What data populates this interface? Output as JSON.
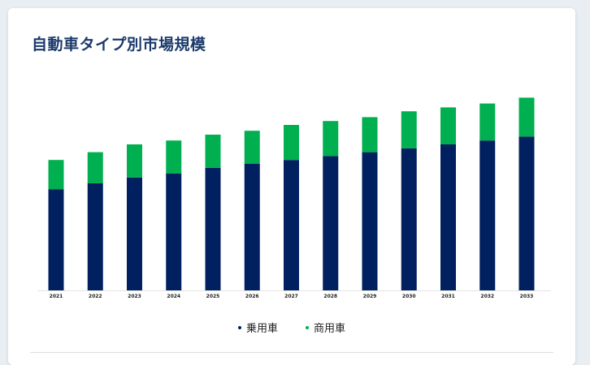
{
  "title": "自動車タイプ別市場規模",
  "colors": {
    "passenger": "#002060",
    "commercial": "#00b050"
  },
  "chart_data": {
    "type": "bar",
    "stacked": true,
    "title": "自動車タイプ別市場規模",
    "categories": [
      "2021",
      "2022",
      "2023",
      "2024",
      "2025",
      "2026",
      "2027",
      "2028",
      "2029",
      "2030",
      "2031",
      "2032",
      "2033"
    ],
    "series": [
      {
        "name": "乗用車",
        "color": "#002060",
        "values": [
          52,
          55,
          58,
          60,
          63,
          65,
          67,
          69,
          71,
          73,
          75,
          77,
          79
        ]
      },
      {
        "name": "商用車",
        "color": "#00b050",
        "values": [
          15,
          16,
          17,
          17,
          17,
          17,
          18,
          18,
          18,
          19,
          19,
          19,
          20
        ]
      }
    ],
    "ylim": [
      0,
      100
    ],
    "y_axis_visible": false,
    "grid": false,
    "legend": "bottom"
  }
}
